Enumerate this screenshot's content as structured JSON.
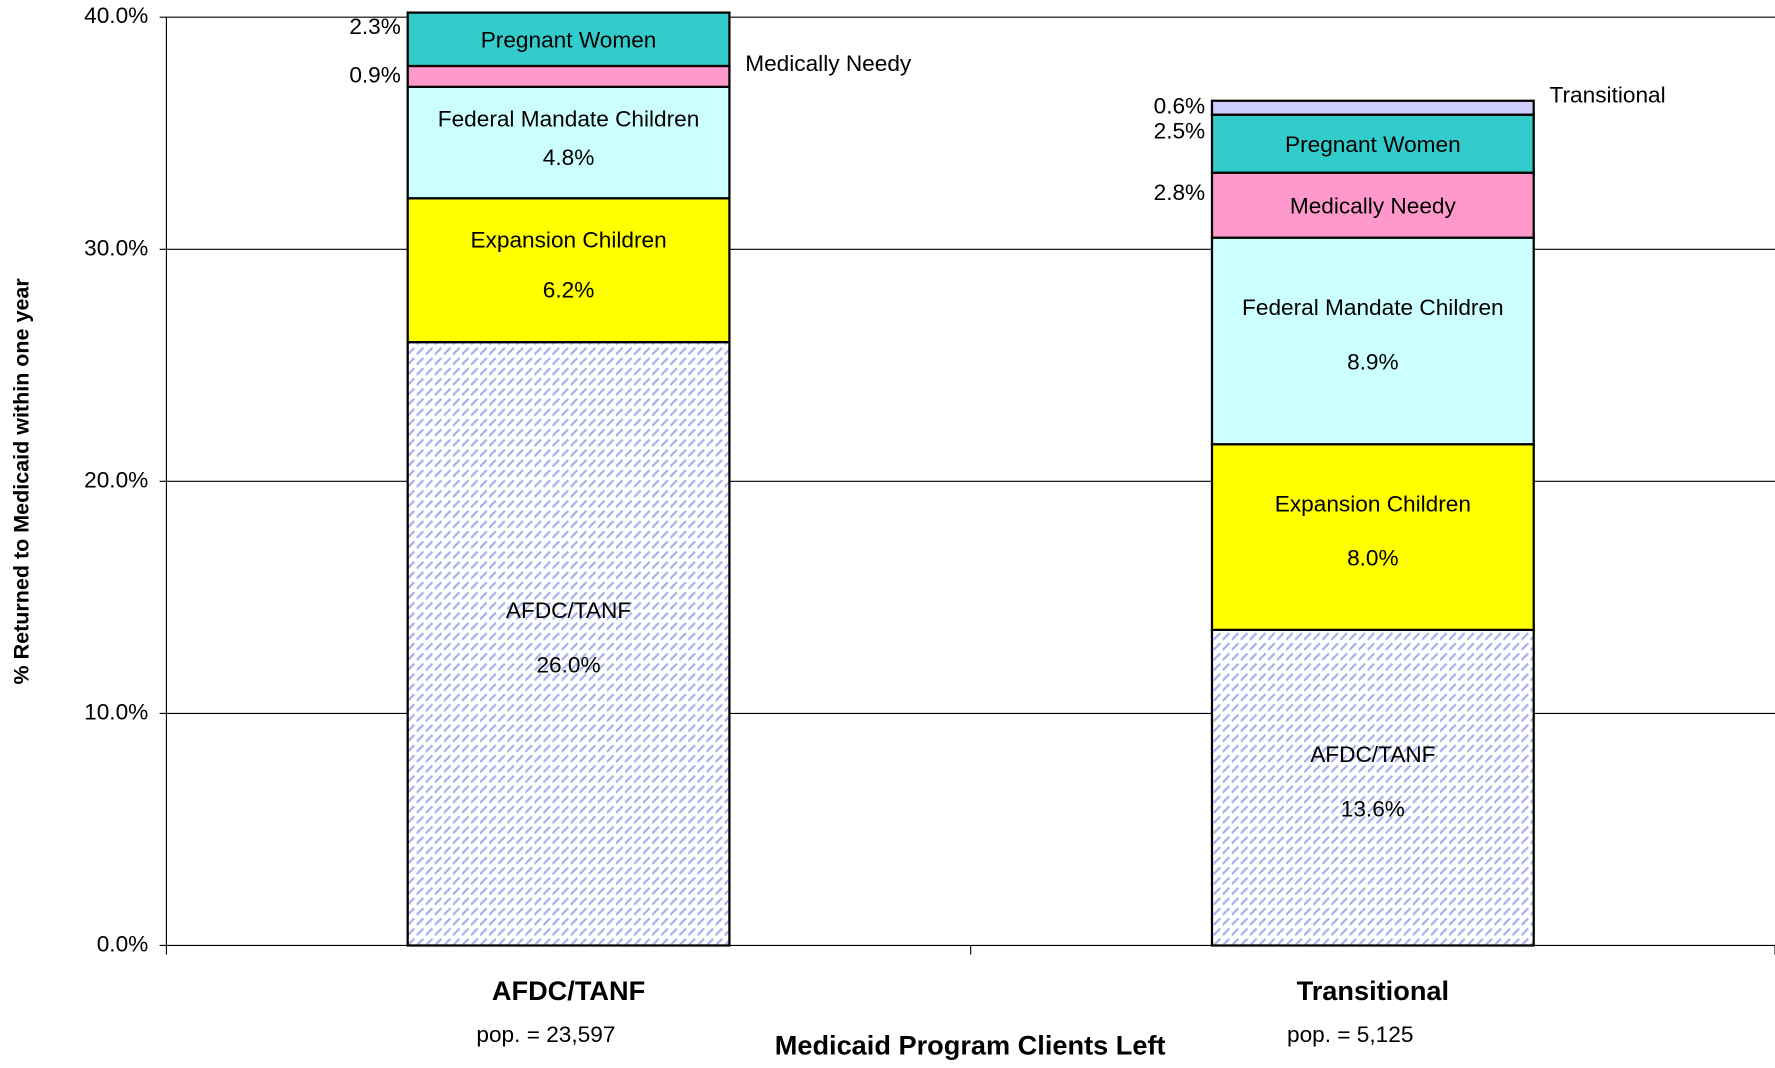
{
  "chart_data": {
    "type": "stacked_bar",
    "y_label": "% Returned to Medicaid within one year",
    "x_label": "Medicaid Program Clients Left",
    "categories": [
      "AFDC/TANF",
      "Transitional"
    ],
    "category_notes": [
      "pop. = 23,597",
      "pop. = 5,125"
    ],
    "series": [
      {
        "name": "AFDC/TANF",
        "color": "#aab0ee",
        "pattern": "hatch",
        "values": [
          26.0,
          13.6
        ],
        "value_labels": [
          "26.0%",
          "13.6%"
        ]
      },
      {
        "name": "Expansion Children",
        "color": "#ffff00",
        "values": [
          6.2,
          8.0
        ],
        "value_labels": [
          "6.2%",
          "8.0%"
        ]
      },
      {
        "name": "Federal Mandate Children",
        "color": "#ccffff",
        "values": [
          4.8,
          8.9
        ],
        "value_labels": [
          "4.8%",
          "8.9%"
        ]
      },
      {
        "name": "Medically Needy",
        "color": "#ff99cc",
        "values": [
          0.9,
          2.8
        ],
        "value_labels": [
          "0.9%",
          "2.8%"
        ]
      },
      {
        "name": "Pregnant Women",
        "color": "#33cccc",
        "values": [
          2.3,
          2.5
        ],
        "value_labels": [
          "2.3%",
          "2.5%"
        ]
      },
      {
        "name": "Transitional",
        "color": "#ccccff",
        "values": [
          null,
          0.6
        ],
        "value_labels": [
          null,
          "0.6%"
        ]
      }
    ],
    "ylim": [
      0,
      40
    ],
    "yticks": [
      {
        "value": 0,
        "label": "0.0%"
      },
      {
        "value": 10,
        "label": "10.0%"
      },
      {
        "value": 20,
        "label": "20.0%"
      },
      {
        "value": 30,
        "label": "30.0%"
      },
      {
        "value": 40,
        "label": "40.0%"
      }
    ],
    "grid": true
  }
}
